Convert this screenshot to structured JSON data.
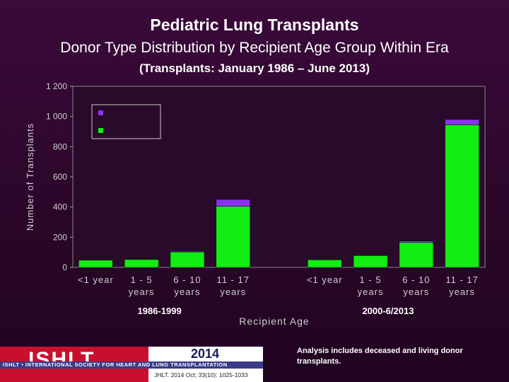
{
  "header": {
    "title": "Pediatric Lung Transplants",
    "subtitle": "Donor Type Distribution by Recipient Age Group Within Era",
    "range": "(Transplants: January 1986 – June 2013)"
  },
  "chart_data": {
    "type": "bar",
    "stacked": true,
    "ylabel": "Number of Transplants",
    "xlabel": "Recipient Age",
    "ylim": [
      0,
      1200
    ],
    "yticks": [
      "0",
      "200",
      "400",
      "600",
      "800",
      "1 000",
      "1 200"
    ],
    "ytick_values": [
      0,
      200,
      400,
      600,
      800,
      1000,
      1200
    ],
    "groups": [
      {
        "label": "1986-1999",
        "categories": [
          [
            "<1 year"
          ],
          [
            "1 - 5",
            "years"
          ],
          [
            "6 - 10",
            "years"
          ],
          [
            "11 - 17",
            "years"
          ]
        ]
      },
      {
        "label": "2000-6/2013",
        "categories": [
          [
            "<1 year"
          ],
          [
            "1 - 5",
            "years"
          ],
          [
            "6 - 10",
            "years"
          ],
          [
            "11 - 17",
            "years"
          ]
        ]
      }
    ],
    "series": [
      {
        "color": "#11ee11",
        "values": [
          48,
          52,
          102,
          405,
          50,
          78,
          165,
          945
        ]
      },
      {
        "color": "#8833ee",
        "values": [
          0,
          0,
          5,
          45,
          0,
          0,
          10,
          35
        ]
      }
    ],
    "legend_position": "top-left",
    "grid": false
  },
  "colors": {
    "plot_bg": "#2a0a2a",
    "green": "#11ee11",
    "purple": "#8833ee"
  },
  "footer": {
    "logo_text": "ISHLT",
    "band_text": "ISHLT • INTERNATIONAL SOCIETY FOR HEART AND LUNG TRANSPLANTATION",
    "year": "2014",
    "citation": "JHLT. 2014 Oct; 33(10): 1025-1033",
    "note": "Analysis includes deceased and living donor transplants."
  }
}
